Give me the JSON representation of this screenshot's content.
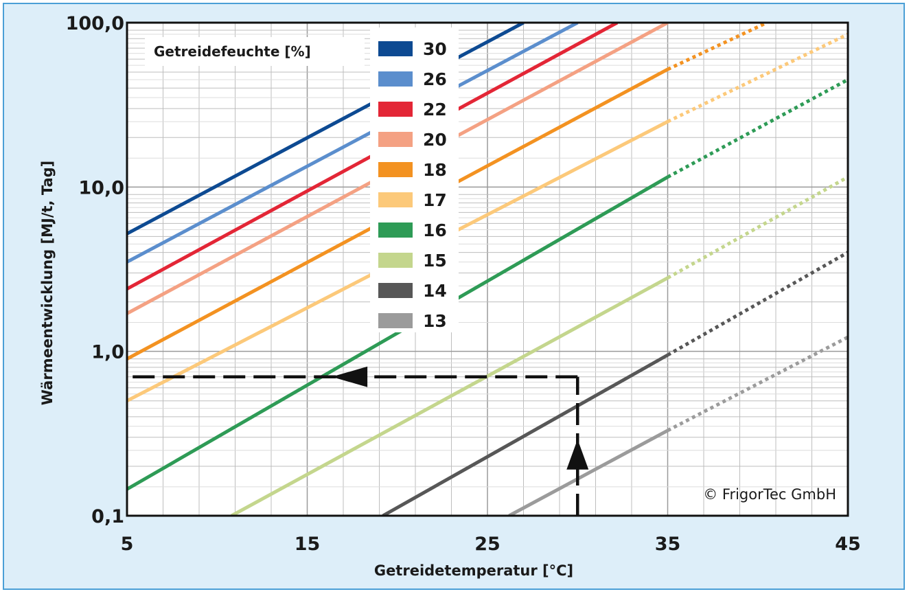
{
  "chart_data": {
    "type": "line",
    "title": "",
    "xlabel": "Getreidetemperatur [°C]",
    "ylabel": "Wärmeentwicklung [MJ/t, Tag]",
    "xlim": [
      5,
      45
    ],
    "ylim": [
      0.1,
      100
    ],
    "y_scale": "log",
    "grid": true,
    "x_ticks": [
      "5",
      "15",
      "25",
      "35",
      "45"
    ],
    "y_ticks": [
      {
        "value": 0.1,
        "label": "0,1"
      },
      {
        "value": 1,
        "label": "1,0"
      },
      {
        "value": 10,
        "label": "10,0"
      },
      {
        "value": 100,
        "label": "100,0"
      }
    ],
    "legend": {
      "title": "Getreidefeuchte [%]",
      "placement": "top-center"
    },
    "solid_until_x": 35,
    "series": [
      {
        "name": "30",
        "color": "#0d4a92",
        "points": [
          [
            5,
            5.2
          ],
          [
            27,
            100
          ]
        ]
      },
      {
        "name": "26",
        "color": "#5b8ecd",
        "points": [
          [
            5,
            3.5
          ],
          [
            30,
            100
          ]
        ]
      },
      {
        "name": "22",
        "color": "#e32636",
        "points": [
          [
            5,
            2.4
          ],
          [
            32.2,
            100
          ]
        ]
      },
      {
        "name": "20",
        "color": "#f4a183",
        "points": [
          [
            5,
            1.7
          ],
          [
            35,
            100
          ]
        ]
      },
      {
        "name": "18",
        "color": "#f39221",
        "points": [
          [
            5,
            0.9
          ],
          [
            35,
            52
          ],
          [
            40.5,
            100
          ]
        ]
      },
      {
        "name": "17",
        "color": "#fcc97a",
        "points": [
          [
            5,
            0.5
          ],
          [
            35,
            25
          ],
          [
            45,
            85
          ]
        ]
      },
      {
        "name": "16",
        "color": "#2e9b56",
        "points": [
          [
            5,
            0.145
          ],
          [
            35,
            11.5
          ],
          [
            45,
            45
          ]
        ]
      },
      {
        "name": "15",
        "color": "#c4d68d",
        "points": [
          [
            10.8,
            0.1
          ],
          [
            35,
            2.8
          ],
          [
            45,
            11.5
          ]
        ]
      },
      {
        "name": "14",
        "color": "#575757",
        "points": [
          [
            19.2,
            0.1
          ],
          [
            35,
            0.95
          ],
          [
            45,
            4
          ]
        ]
      },
      {
        "name": "13",
        "color": "#9b9b9b",
        "points": [
          [
            26.2,
            0.1
          ],
          [
            35,
            0.33
          ],
          [
            45,
            1.22
          ]
        ]
      }
    ],
    "annotation": {
      "type": "dashed-arrow-path",
      "x": 30,
      "y": 0.7,
      "description_points": [
        [
          30,
          0.1
        ],
        [
          30,
          0.7
        ],
        [
          5,
          0.7
        ]
      ]
    },
    "credit": "© FrigorTec GmbH"
  }
}
